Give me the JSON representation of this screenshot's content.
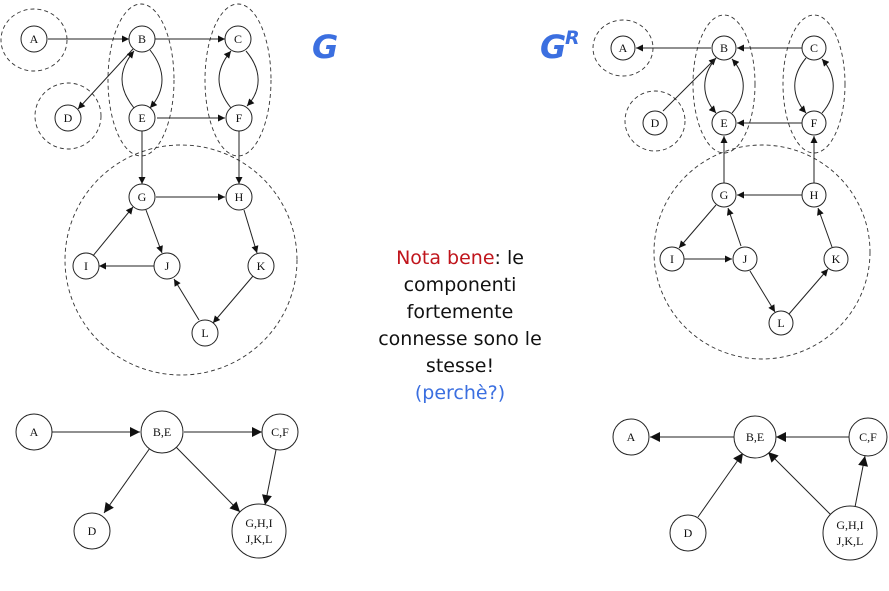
{
  "titles": {
    "g": "G",
    "gr_base": "G",
    "gr_sup": "R"
  },
  "note": {
    "highlight": "Nota bene",
    "line1_rest": ": le",
    "line2": "componenti",
    "line3": "fortemente",
    "line4": "connesse sono le",
    "line5": "stesse!",
    "question": "(perchè?)"
  },
  "colors": {
    "accent_blue": "#3b6fe0",
    "highlight_red": "#c0151c"
  },
  "graph_G": {
    "nodes": [
      "A",
      "B",
      "C",
      "D",
      "E",
      "F",
      "G",
      "H",
      "I",
      "J",
      "K",
      "L"
    ],
    "edges": [
      [
        "A",
        "B"
      ],
      [
        "B",
        "C"
      ],
      [
        "B",
        "D"
      ],
      [
        "B",
        "E"
      ],
      [
        "E",
        "B"
      ],
      [
        "C",
        "F"
      ],
      [
        "F",
        "C"
      ],
      [
        "E",
        "F"
      ],
      [
        "E",
        "G"
      ],
      [
        "F",
        "H"
      ],
      [
        "G",
        "H"
      ],
      [
        "G",
        "J"
      ],
      [
        "J",
        "I"
      ],
      [
        "I",
        "G"
      ],
      [
        "H",
        "K"
      ],
      [
        "K",
        "L"
      ],
      [
        "L",
        "J"
      ]
    ],
    "components": [
      [
        "A"
      ],
      [
        "B",
        "E"
      ],
      [
        "C",
        "F"
      ],
      [
        "D"
      ],
      [
        "G",
        "H",
        "I",
        "J",
        "K",
        "L"
      ]
    ]
  },
  "graph_GR": {
    "nodes": [
      "A",
      "B",
      "C",
      "D",
      "E",
      "F",
      "G",
      "H",
      "I",
      "J",
      "K",
      "L"
    ],
    "edges": [
      [
        "B",
        "A"
      ],
      [
        "C",
        "B"
      ],
      [
        "D",
        "B"
      ],
      [
        "B",
        "E"
      ],
      [
        "E",
        "B"
      ],
      [
        "C",
        "F"
      ],
      [
        "F",
        "C"
      ],
      [
        "F",
        "E"
      ],
      [
        "G",
        "E"
      ],
      [
        "H",
        "F"
      ],
      [
        "H",
        "G"
      ],
      [
        "J",
        "G"
      ],
      [
        "I",
        "J"
      ],
      [
        "G",
        "I"
      ],
      [
        "K",
        "H"
      ],
      [
        "L",
        "K"
      ],
      [
        "J",
        "L"
      ]
    ],
    "components": [
      [
        "A"
      ],
      [
        "B",
        "E"
      ],
      [
        "C",
        "F"
      ],
      [
        "D"
      ],
      [
        "G",
        "H",
        "I",
        "J",
        "K",
        "L"
      ]
    ]
  },
  "dag_G": {
    "nodes": [
      "A",
      "B,E",
      "C,F",
      "D",
      "G,H,I|J,K,L"
    ],
    "labels": {
      "A": "A",
      "BE": "B,E",
      "CF": "C,F",
      "D": "D",
      "G1": "G,H,I",
      "G2": "J,K,L"
    },
    "edges": [
      [
        "A",
        "B,E"
      ],
      [
        "B,E",
        "C,F"
      ],
      [
        "B,E",
        "D"
      ],
      [
        "B,E",
        "G,H,I,J,K,L"
      ],
      [
        "C,F",
        "G,H,I,J,K,L"
      ]
    ]
  },
  "dag_GR": {
    "nodes": [
      "A",
      "B,E",
      "C,F",
      "D",
      "G,H,I|J,K,L"
    ],
    "labels": {
      "A": "A",
      "BE": "B,E",
      "CF": "C,F",
      "D": "D",
      "G1": "G,H,I",
      "G2": "J,K,L"
    },
    "edges": [
      [
        "B,E",
        "A"
      ],
      [
        "C,F",
        "B,E"
      ],
      [
        "D",
        "B,E"
      ],
      [
        "G,H,I,J,K,L",
        "B,E"
      ],
      [
        "G,H,I,J,K,L",
        "C,F"
      ]
    ]
  }
}
